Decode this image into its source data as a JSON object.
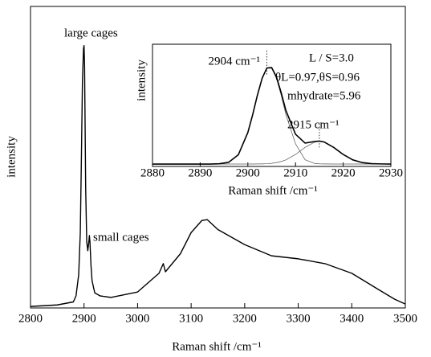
{
  "chart_data": [
    {
      "type": "line",
      "x_label": "Raman shift /cm⁻¹",
      "y_label": "intensity",
      "annotations": [
        "large cages",
        "small cages"
      ],
      "xlim": [
        2800,
        3500
      ],
      "xticks": [
        2800,
        2900,
        3000,
        3100,
        3200,
        3300,
        3400,
        3500
      ],
      "ylim": [
        0,
        1
      ],
      "x": [
        2800,
        2850,
        2880,
        2885,
        2890,
        2893,
        2895,
        2897,
        2899,
        2900,
        2901,
        2903,
        2905,
        2907,
        2909,
        2910,
        2911,
        2913,
        2915,
        2920,
        2930,
        2950,
        3000,
        3040,
        3048,
        3052,
        3080,
        3100,
        3120,
        3130,
        3150,
        3200,
        3250,
        3300,
        3350,
        3400,
        3450,
        3480,
        3500
      ],
      "series": [
        {
          "color": "#000000",
          "values": [
            0.005,
            0.01,
            0.02,
            0.04,
            0.11,
            0.25,
            0.49,
            0.75,
            0.86,
            0.87,
            0.8,
            0.4,
            0.22,
            0.19,
            0.22,
            0.24,
            0.22,
            0.14,
            0.09,
            0.05,
            0.04,
            0.035,
            0.053,
            0.115,
            0.147,
            0.12,
            0.18,
            0.25,
            0.29,
            0.293,
            0.26,
            0.21,
            0.173,
            0.163,
            0.147,
            0.115,
            0.061,
            0.029,
            0.013
          ]
        }
      ]
    },
    {
      "type": "line",
      "x_label": "Raman shift /cm⁻¹",
      "y_label": "intensity",
      "annotations": [
        "2904 cm⁻¹",
        "L / S=3.0",
        "θL=0.97,θS=0.96",
        "mhydrate=5.96",
        "2915 cm⁻¹"
      ],
      "xlim": [
        2880,
        2930
      ],
      "xticks": [
        2880,
        2890,
        2900,
        2910,
        2920,
        2930
      ],
      "ylim": [
        -0.02,
        1
      ],
      "x": [
        2880,
        2884,
        2888,
        2890,
        2892,
        2894,
        2896,
        2898,
        2900,
        2901,
        2902,
        2903,
        2904,
        2905,
        2906,
        2907,
        2908,
        2910,
        2912,
        2914,
        2915,
        2916,
        2918,
        2920,
        2922,
        2924,
        2926,
        2928,
        2930
      ],
      "series": [
        {
          "color": "#000000",
          "values": [
            0,
            0,
            0,
            0,
            0,
            0.002,
            0.015,
            0.077,
            0.263,
            0.41,
            0.574,
            0.716,
            0.802,
            0.805,
            0.727,
            0.594,
            0.445,
            0.249,
            0.175,
            0.188,
            0.192,
            0.184,
            0.139,
            0.08,
            0.035,
            0.012,
            0.003,
            0.001,
            0
          ]
        },
        {
          "color": "#555555",
          "values": [
            0,
            0,
            0,
            0,
            0,
            0.002,
            0.015,
            0.077,
            0.263,
            0.41,
            0.573,
            0.715,
            0.799,
            0.799,
            0.715,
            0.573,
            0.41,
            0.169,
            0.036,
            0.005,
            0.002,
            0.001,
            0,
            0,
            0,
            0,
            0,
            0,
            0
          ]
        },
        {
          "color": "#555555",
          "values": [
            0,
            0,
            0,
            0,
            0,
            0,
            0,
            0,
            0,
            0,
            0.001,
            0.001,
            0.003,
            0.006,
            0.012,
            0.021,
            0.035,
            0.08,
            0.139,
            0.183,
            0.19,
            0.183,
            0.139,
            0.08,
            0.035,
            0.012,
            0.003,
            0.001,
            0
          ]
        }
      ]
    }
  ]
}
